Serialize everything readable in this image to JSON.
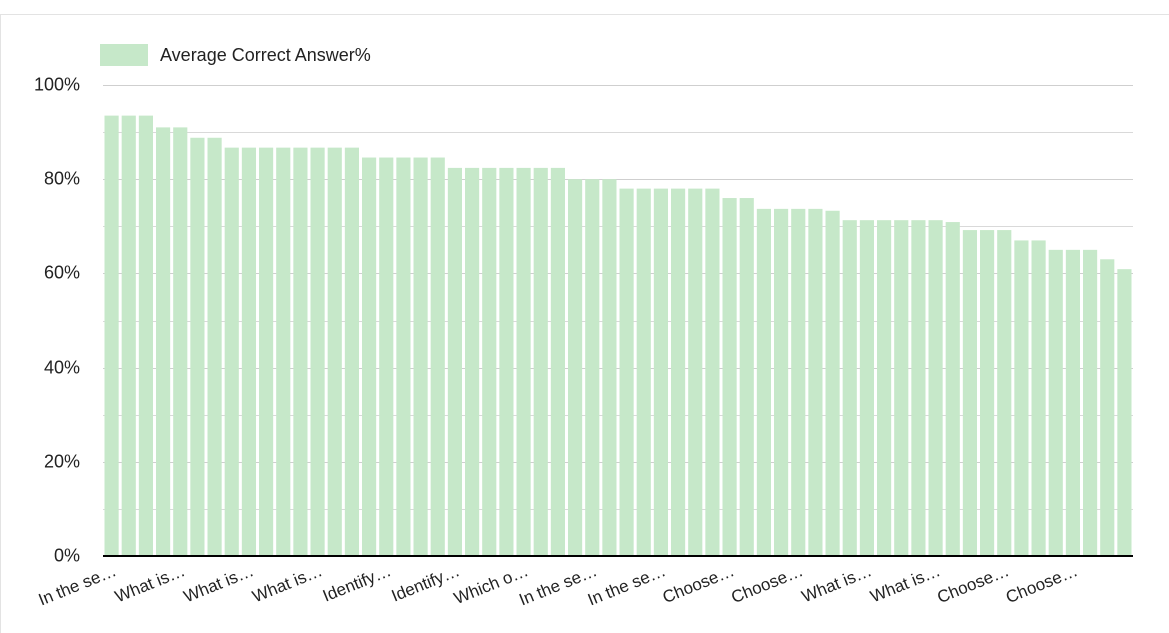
{
  "chart_data": {
    "type": "bar",
    "series": [
      {
        "name": "Average Correct Answer%",
        "color": "#c6e8c9",
        "values": [
          93.5,
          93.5,
          93.5,
          91,
          91,
          88.8,
          88.8,
          86.7,
          86.7,
          86.7,
          86.7,
          86.7,
          86.7,
          86.7,
          86.7,
          84.6,
          84.6,
          84.6,
          84.6,
          84.6,
          82.4,
          82.4,
          82.4,
          82.4,
          82.4,
          82.4,
          82.4,
          80,
          80,
          80,
          78,
          78,
          78,
          78,
          78,
          78,
          76,
          76,
          73.7,
          73.7,
          73.7,
          73.7,
          73.3,
          71.3,
          71.3,
          71.3,
          71.3,
          71.3,
          71.3,
          70.9,
          69.2,
          69.2,
          69.2,
          67,
          67,
          65,
          65,
          65,
          63,
          60.9
        ]
      }
    ],
    "categories": [
      "In the se…",
      null,
      null,
      null,
      "What is…",
      null,
      null,
      null,
      "What is…",
      null,
      null,
      null,
      "What is…",
      null,
      null,
      null,
      "Identify…",
      null,
      null,
      null,
      "Identify…",
      null,
      null,
      null,
      "Which o…",
      null,
      null,
      null,
      "In the se…",
      null,
      null,
      null,
      "In the se…",
      null,
      null,
      null,
      "Choose…",
      null,
      null,
      null,
      "Choose…",
      null,
      null,
      null,
      "What is…",
      null,
      null,
      null,
      "What is…",
      null,
      null,
      null,
      "Choose…",
      null,
      null,
      null,
      "Choose…",
      null,
      null,
      null
    ],
    "ylim": [
      0,
      100
    ],
    "yticks": [
      {
        "value": 0,
        "label": "0%"
      },
      {
        "value": 20,
        "label": "20%"
      },
      {
        "value": 40,
        "label": "40%"
      },
      {
        "value": 60,
        "label": "60%"
      },
      {
        "value": 80,
        "label": "80%"
      },
      {
        "value": 100,
        "label": "100%"
      }
    ],
    "minor_yticks": [
      10,
      30,
      50,
      70,
      90
    ],
    "grid": true,
    "legend": "top-left"
  }
}
